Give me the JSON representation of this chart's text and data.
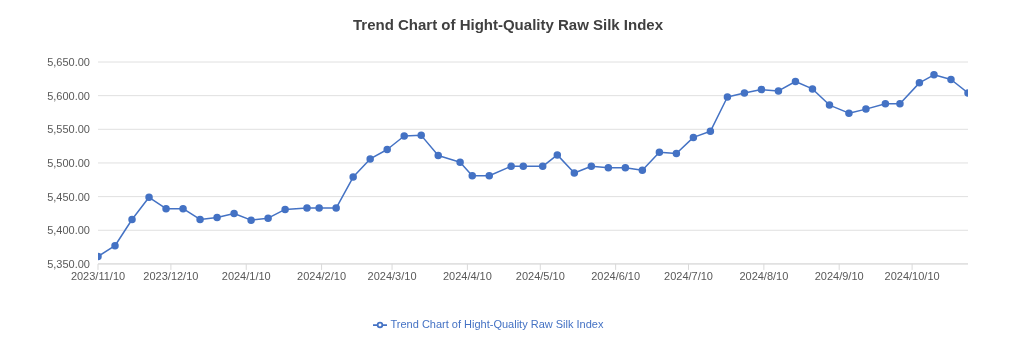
{
  "chart_data": {
    "type": "line",
    "title": "Trend Chart of Hight-Quality Raw Silk Index",
    "x": [
      "2023-11-10",
      "2023-11-17",
      "2023-11-24",
      "2023-12-01",
      "2023-12-08",
      "2023-12-15",
      "2023-12-22",
      "2023-12-29",
      "2024-01-05",
      "2024-01-12",
      "2024-01-19",
      "2024-01-26",
      "2024-02-04",
      "2024-02-09",
      "2024-02-16",
      "2024-02-23",
      "2024-03-01",
      "2024-03-08",
      "2024-03-15",
      "2024-03-22",
      "2024-03-29",
      "2024-04-07",
      "2024-04-12",
      "2024-04-19",
      "2024-04-28",
      "2024-05-03",
      "2024-05-11",
      "2024-05-17",
      "2024-05-24",
      "2024-05-31",
      "2024-06-07",
      "2024-06-14",
      "2024-06-21",
      "2024-06-28",
      "2024-07-05",
      "2024-07-12",
      "2024-07-19",
      "2024-07-26",
      "2024-08-02",
      "2024-08-09",
      "2024-08-16",
      "2024-08-23",
      "2024-08-30",
      "2024-09-06",
      "2024-09-14",
      "2024-09-21",
      "2024-09-29",
      "2024-10-05",
      "2024-10-13",
      "2024-10-19",
      "2024-10-26",
      "2024-11-02"
    ],
    "series": [
      {
        "name": "Trend Chart of Hight-Quality Raw Silk Index",
        "color": "#4472c4",
        "values": [
          5361,
          5377,
          5416,
          5449,
          5432,
          5432,
          5416,
          5419,
          5425,
          5415,
          5418,
          5431,
          5433,
          5433,
          5433,
          5479,
          5506,
          5520,
          5540,
          5541,
          5511,
          5501,
          5481,
          5481,
          5495,
          5495,
          5495,
          5512,
          5485,
          5495,
          5493,
          5493,
          5489,
          5516,
          5514,
          5538,
          5547,
          5598,
          5604,
          5609,
          5607,
          5621,
          5610,
          5586,
          5574,
          5580,
          5588,
          5588,
          5619,
          5631,
          5624,
          5604
        ]
      }
    ],
    "xlim": [
      "2023-11-10",
      "2024-11-02"
    ],
    "xticks": [
      {
        "value": "2023-11-10",
        "label": "2023/11/10"
      },
      {
        "value": "2023-12-10",
        "label": "2023/12/10"
      },
      {
        "value": "2024-01-10",
        "label": "2024/1/10"
      },
      {
        "value": "2024-02-10",
        "label": "2024/2/10"
      },
      {
        "value": "2024-03-10",
        "label": "2024/3/10"
      },
      {
        "value": "2024-04-10",
        "label": "2024/4/10"
      },
      {
        "value": "2024-05-10",
        "label": "2024/5/10"
      },
      {
        "value": "2024-06-10",
        "label": "2024/6/10"
      },
      {
        "value": "2024-07-10",
        "label": "2024/7/10"
      },
      {
        "value": "2024-08-10",
        "label": "2024/8/10"
      },
      {
        "value": "2024-09-10",
        "label": "2024/9/10"
      },
      {
        "value": "2024-10-10",
        "label": "2024/10/10"
      }
    ],
    "ylim": [
      5350,
      5650
    ],
    "yticks": [
      {
        "value": 5350,
        "label": "5,350.00"
      },
      {
        "value": 5400,
        "label": "5,400.00"
      },
      {
        "value": 5450,
        "label": "5,450.00"
      },
      {
        "value": 5500,
        "label": "5,500.00"
      },
      {
        "value": 5550,
        "label": "5,550.00"
      },
      {
        "value": 5600,
        "label": "5,600.00"
      },
      {
        "value": 5650,
        "label": "5,650.00"
      }
    ],
    "grid": "y",
    "legend": "bottom",
    "marker": "circle",
    "line_style": "solid"
  }
}
